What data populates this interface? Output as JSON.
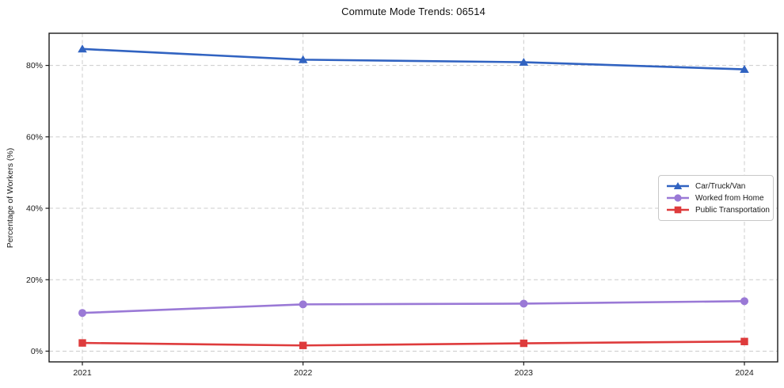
{
  "chart_data": {
    "type": "line",
    "title": "Commute Mode Trends: 06514",
    "xlabel": "",
    "ylabel": "Percentage of Workers (%)",
    "categories": [
      "2021",
      "2022",
      "2023",
      "2024"
    ],
    "series": [
      {
        "name": "Car/Truck/Van",
        "marker": "triangle",
        "color": "#3163c1",
        "values": [
          84.6,
          81.6,
          80.9,
          78.9
        ]
      },
      {
        "name": "Worked from Home",
        "marker": "circle",
        "color": "#9a79d6",
        "values": [
          10.7,
          13.1,
          13.3,
          14.0
        ]
      },
      {
        "name": "Public Transportation",
        "marker": "square",
        "color": "#de3b3c",
        "values": [
          2.3,
          1.6,
          2.2,
          2.7
        ]
      }
    ],
    "ylim": [
      -3,
      89
    ],
    "yticks": {
      "values": [
        0,
        20,
        40,
        60,
        80
      ],
      "labels": [
        "0%",
        "20%",
        "40%",
        "60%",
        "80%"
      ]
    },
    "grid": true,
    "grid_style": "dashed",
    "legend_position": "center-right",
    "colors": {
      "grid": "#cccccc",
      "spine": "#1a1a1a",
      "text": "#1a1a1a",
      "background": "#ffffff"
    }
  }
}
